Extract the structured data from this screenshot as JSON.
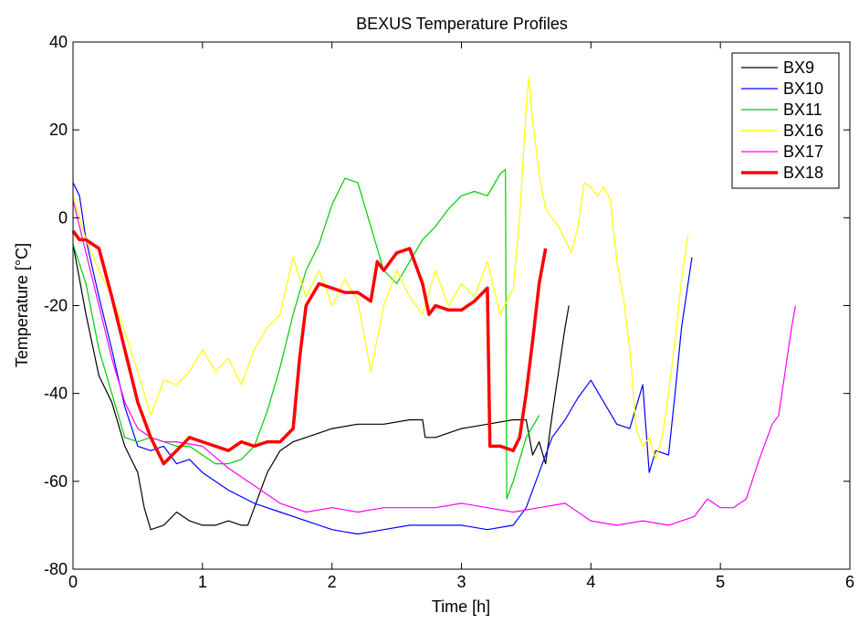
{
  "chart_data": {
    "type": "line",
    "title": "BEXUS Temperature Profiles",
    "xlabel": "Time [h]",
    "ylabel": "Temperature [°C]",
    "xlim": [
      0,
      6
    ],
    "ylim": [
      -80,
      40
    ],
    "xticks": [
      "0",
      "1",
      "2",
      "3",
      "4",
      "5",
      "6"
    ],
    "yticks": [
      "-80",
      "-60",
      "-40",
      "-20",
      "0",
      "20",
      "40"
    ],
    "grid": false,
    "legend_position": "top-right",
    "series": [
      {
        "name": "BX9",
        "color": "#000000",
        "points": [
          [
            0,
            -6
          ],
          [
            0.1,
            -22
          ],
          [
            0.2,
            -36
          ],
          [
            0.3,
            -42
          ],
          [
            0.4,
            -52
          ],
          [
            0.5,
            -58
          ],
          [
            0.55,
            -66
          ],
          [
            0.6,
            -71
          ],
          [
            0.7,
            -70
          ],
          [
            0.8,
            -67
          ],
          [
            0.9,
            -69
          ],
          [
            1.0,
            -70
          ],
          [
            1.1,
            -70
          ],
          [
            1.2,
            -69
          ],
          [
            1.3,
            -70
          ],
          [
            1.35,
            -70
          ],
          [
            1.4,
            -66
          ],
          [
            1.5,
            -58
          ],
          [
            1.6,
            -53
          ],
          [
            1.7,
            -51
          ],
          [
            1.8,
            -50
          ],
          [
            2.0,
            -48
          ],
          [
            2.2,
            -47
          ],
          [
            2.4,
            -47
          ],
          [
            2.6,
            -46
          ],
          [
            2.7,
            -46
          ],
          [
            2.72,
            -50
          ],
          [
            2.8,
            -50
          ],
          [
            3.0,
            -48
          ],
          [
            3.2,
            -47
          ],
          [
            3.4,
            -46
          ],
          [
            3.5,
            -46
          ],
          [
            3.55,
            -54
          ],
          [
            3.6,
            -51
          ],
          [
            3.65,
            -56
          ],
          [
            3.7,
            -45
          ],
          [
            3.75,
            -35
          ],
          [
            3.8,
            -25
          ],
          [
            3.83,
            -20
          ]
        ]
      },
      {
        "name": "BX10",
        "color": "#0000ff",
        "points": [
          [
            0,
            8
          ],
          [
            0.05,
            5
          ],
          [
            0.1,
            -5
          ],
          [
            0.2,
            -18
          ],
          [
            0.3,
            -30
          ],
          [
            0.4,
            -43
          ],
          [
            0.5,
            -52
          ],
          [
            0.6,
            -53
          ],
          [
            0.7,
            -52
          ],
          [
            0.8,
            -56
          ],
          [
            0.9,
            -55
          ],
          [
            1.0,
            -58
          ],
          [
            1.2,
            -62
          ],
          [
            1.4,
            -65
          ],
          [
            1.6,
            -67
          ],
          [
            1.8,
            -69
          ],
          [
            2.0,
            -71
          ],
          [
            2.2,
            -72
          ],
          [
            2.4,
            -71
          ],
          [
            2.6,
            -70
          ],
          [
            2.8,
            -70
          ],
          [
            3.0,
            -70
          ],
          [
            3.2,
            -71
          ],
          [
            3.4,
            -70
          ],
          [
            3.5,
            -66
          ],
          [
            3.6,
            -58
          ],
          [
            3.7,
            -50
          ],
          [
            3.8,
            -46
          ],
          [
            3.9,
            -41
          ],
          [
            4.0,
            -37
          ],
          [
            4.1,
            -42
          ],
          [
            4.2,
            -47
          ],
          [
            4.3,
            -48
          ],
          [
            4.4,
            -38
          ],
          [
            4.45,
            -58
          ],
          [
            4.5,
            -53
          ],
          [
            4.6,
            -54
          ],
          [
            4.65,
            -40
          ],
          [
            4.7,
            -25
          ],
          [
            4.75,
            -15
          ],
          [
            4.78,
            -9
          ]
        ]
      },
      {
        "name": "BX11",
        "color": "#00cc00",
        "points": [
          [
            0,
            -6
          ],
          [
            0.1,
            -15
          ],
          [
            0.2,
            -30
          ],
          [
            0.3,
            -40
          ],
          [
            0.4,
            -50
          ],
          [
            0.5,
            -51
          ],
          [
            0.6,
            -50
          ],
          [
            0.7,
            -51
          ],
          [
            0.8,
            -52
          ],
          [
            0.9,
            -52
          ],
          [
            1.0,
            -54
          ],
          [
            1.1,
            -56
          ],
          [
            1.2,
            -56
          ],
          [
            1.3,
            -55
          ],
          [
            1.4,
            -52
          ],
          [
            1.5,
            -44
          ],
          [
            1.6,
            -34
          ],
          [
            1.7,
            -22
          ],
          [
            1.8,
            -12
          ],
          [
            1.9,
            -6
          ],
          [
            2.0,
            3
          ],
          [
            2.1,
            9
          ],
          [
            2.2,
            8
          ],
          [
            2.3,
            -2
          ],
          [
            2.4,
            -12
          ],
          [
            2.5,
            -15
          ],
          [
            2.6,
            -10
          ],
          [
            2.7,
            -5
          ],
          [
            2.8,
            -2
          ],
          [
            2.9,
            2
          ],
          [
            3.0,
            5
          ],
          [
            3.1,
            6
          ],
          [
            3.2,
            5
          ],
          [
            3.3,
            10
          ],
          [
            3.34,
            11
          ],
          [
            3.35,
            -64
          ],
          [
            3.4,
            -60
          ],
          [
            3.5,
            -50
          ],
          [
            3.6,
            -45
          ]
        ]
      },
      {
        "name": "BX16",
        "color": "#ffff00",
        "points": [
          [
            0,
            5
          ],
          [
            0.1,
            -5
          ],
          [
            0.2,
            -12
          ],
          [
            0.3,
            -18
          ],
          [
            0.4,
            -26
          ],
          [
            0.5,
            -35
          ],
          [
            0.6,
            -45
          ],
          [
            0.7,
            -37
          ],
          [
            0.8,
            -38
          ],
          [
            0.9,
            -35
          ],
          [
            1.0,
            -30
          ],
          [
            1.1,
            -35
          ],
          [
            1.2,
            -32
          ],
          [
            1.3,
            -38
          ],
          [
            1.4,
            -30
          ],
          [
            1.5,
            -25
          ],
          [
            1.6,
            -22
          ],
          [
            1.7,
            -9
          ],
          [
            1.8,
            -18
          ],
          [
            1.9,
            -12
          ],
          [
            2.0,
            -20
          ],
          [
            2.1,
            -14
          ],
          [
            2.2,
            -19
          ],
          [
            2.3,
            -35
          ],
          [
            2.4,
            -20
          ],
          [
            2.5,
            -12
          ],
          [
            2.6,
            -18
          ],
          [
            2.7,
            -22
          ],
          [
            2.8,
            -12
          ],
          [
            2.9,
            -20
          ],
          [
            3.0,
            -15
          ],
          [
            3.1,
            -18
          ],
          [
            3.2,
            -10
          ],
          [
            3.3,
            -22
          ],
          [
            3.4,
            -16
          ],
          [
            3.45,
            0
          ],
          [
            3.5,
            25
          ],
          [
            3.52,
            32
          ],
          [
            3.55,
            22
          ],
          [
            3.6,
            10
          ],
          [
            3.65,
            2
          ],
          [
            3.7,
            0
          ],
          [
            3.75,
            -2
          ],
          [
            3.8,
            -5
          ],
          [
            3.85,
            -8
          ],
          [
            3.9,
            -2
          ],
          [
            3.95,
            8
          ],
          [
            4.0,
            7
          ],
          [
            4.05,
            5
          ],
          [
            4.1,
            7
          ],
          [
            4.15,
            4
          ],
          [
            4.2,
            -10
          ],
          [
            4.25,
            -18
          ],
          [
            4.3,
            -30
          ],
          [
            4.35,
            -48
          ],
          [
            4.4,
            -52
          ],
          [
            4.45,
            -50
          ],
          [
            4.5,
            -55
          ],
          [
            4.55,
            -50
          ],
          [
            4.6,
            -40
          ],
          [
            4.65,
            -28
          ],
          [
            4.7,
            -14
          ],
          [
            4.75,
            -4
          ]
        ]
      },
      {
        "name": "BX17",
        "color": "#ff00ff",
        "points": [
          [
            0,
            4
          ],
          [
            0.1,
            -8
          ],
          [
            0.2,
            -20
          ],
          [
            0.3,
            -32
          ],
          [
            0.4,
            -42
          ],
          [
            0.5,
            -48
          ],
          [
            0.6,
            -50
          ],
          [
            0.7,
            -51
          ],
          [
            0.8,
            -51
          ],
          [
            1.0,
            -52
          ],
          [
            1.2,
            -57
          ],
          [
            1.4,
            -61
          ],
          [
            1.6,
            -65
          ],
          [
            1.8,
            -67
          ],
          [
            2.0,
            -66
          ],
          [
            2.2,
            -67
          ],
          [
            2.4,
            -66
          ],
          [
            2.6,
            -66
          ],
          [
            2.8,
            -66
          ],
          [
            3.0,
            -65
          ],
          [
            3.2,
            -66
          ],
          [
            3.4,
            -67
          ],
          [
            3.6,
            -66
          ],
          [
            3.8,
            -65
          ],
          [
            4.0,
            -69
          ],
          [
            4.2,
            -70
          ],
          [
            4.4,
            -69
          ],
          [
            4.6,
            -70
          ],
          [
            4.8,
            -68
          ],
          [
            4.9,
            -64
          ],
          [
            5.0,
            -66
          ],
          [
            5.1,
            -66
          ],
          [
            5.2,
            -64
          ],
          [
            5.3,
            -55
          ],
          [
            5.4,
            -47
          ],
          [
            5.45,
            -45
          ],
          [
            5.5,
            -35
          ],
          [
            5.55,
            -25
          ],
          [
            5.58,
            -20
          ]
        ]
      },
      {
        "name": "BX18",
        "color": "#ff0000",
        "points": [
          [
            0,
            -3
          ],
          [
            0.05,
            -5
          ],
          [
            0.1,
            -5
          ],
          [
            0.2,
            -7
          ],
          [
            0.3,
            -18
          ],
          [
            0.4,
            -30
          ],
          [
            0.5,
            -42
          ],
          [
            0.6,
            -50
          ],
          [
            0.7,
            -56
          ],
          [
            0.8,
            -53
          ],
          [
            0.9,
            -50
          ],
          [
            1.0,
            -51
          ],
          [
            1.1,
            -52
          ],
          [
            1.2,
            -53
          ],
          [
            1.3,
            -51
          ],
          [
            1.4,
            -52
          ],
          [
            1.5,
            -51
          ],
          [
            1.6,
            -51
          ],
          [
            1.7,
            -48
          ],
          [
            1.75,
            -32
          ],
          [
            1.8,
            -20
          ],
          [
            1.9,
            -15
          ],
          [
            2.0,
            -16
          ],
          [
            2.1,
            -17
          ],
          [
            2.2,
            -17
          ],
          [
            2.3,
            -19
          ],
          [
            2.35,
            -10
          ],
          [
            2.4,
            -12
          ],
          [
            2.5,
            -8
          ],
          [
            2.6,
            -7
          ],
          [
            2.7,
            -15
          ],
          [
            2.75,
            -22
          ],
          [
            2.8,
            -20
          ],
          [
            2.9,
            -21
          ],
          [
            3.0,
            -21
          ],
          [
            3.1,
            -19
          ],
          [
            3.2,
            -16
          ],
          [
            3.22,
            -52
          ],
          [
            3.3,
            -52
          ],
          [
            3.4,
            -53
          ],
          [
            3.45,
            -50
          ],
          [
            3.5,
            -40
          ],
          [
            3.55,
            -28
          ],
          [
            3.6,
            -15
          ],
          [
            3.65,
            -7
          ]
        ]
      }
    ]
  }
}
